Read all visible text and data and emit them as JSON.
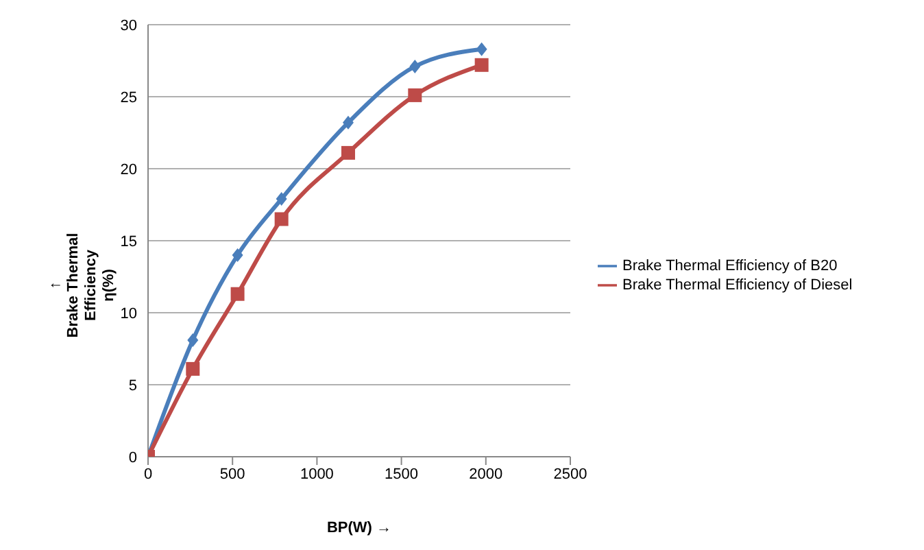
{
  "chart_data": {
    "type": "line",
    "xlabel": "BP(W) →",
    "ylabel": "↑\nBrake Thermal\nEfficiency\nη(%)",
    "series": [
      {
        "name": "Brake Thermal Efficiency of B20",
        "color": "#4a7ebb",
        "marker": "diamond",
        "x": [
          0,
          265,
          530,
          790,
          1185,
          1580,
          1975
        ],
        "values": [
          0,
          8.1,
          14,
          17.9,
          23.2,
          27.1,
          28.3
        ]
      },
      {
        "name": "Brake Thermal Efficiency of Diesel",
        "color": "#be4b48",
        "marker": "square",
        "x": [
          0,
          265,
          530,
          790,
          1185,
          1580,
          1975
        ],
        "values": [
          0,
          6.1,
          11.3,
          16.5,
          21.1,
          25.1,
          27.2
        ]
      }
    ],
    "xlim": [
      0,
      2500
    ],
    "xticks": [
      0,
      500,
      1000,
      1500,
      2000,
      2500
    ],
    "ylim": [
      0,
      30
    ],
    "yticks": [
      0,
      5,
      10,
      15,
      20,
      25,
      30
    ],
    "grid": "y",
    "legend": "right",
    "line_style": "solid"
  }
}
